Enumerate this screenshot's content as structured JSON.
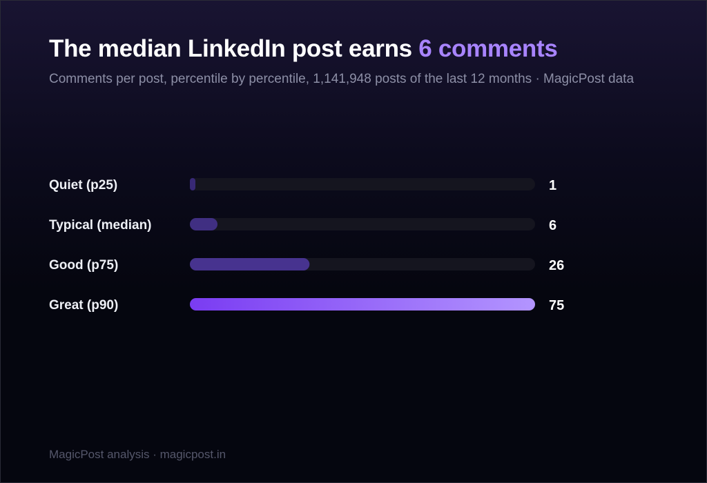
{
  "header": {
    "title_prefix": "The median LinkedIn post earns ",
    "title_highlight": "6 comments",
    "subtitle": "Comments per post, percentile by percentile, 1,141,948 posts of the last 12 months · MagicPost data"
  },
  "footer": {
    "source": "MagicPost analysis · magicpost.in"
  },
  "colors": {
    "accent": "#a884ff",
    "track": "#15151f",
    "bar_low": "#6b4cd6",
    "bar_high": "#a884ff"
  },
  "chart_data": {
    "type": "bar",
    "orientation": "horizontal",
    "categories": [
      "Quiet (p25)",
      "Typical (median)",
      "Good (p75)",
      "Great (p90)"
    ],
    "values": [
      1,
      6,
      26,
      75
    ],
    "value_labels": [
      "1",
      "6",
      "26",
      "75"
    ],
    "xlim": [
      0,
      75
    ],
    "grid": false,
    "legend": "none"
  }
}
